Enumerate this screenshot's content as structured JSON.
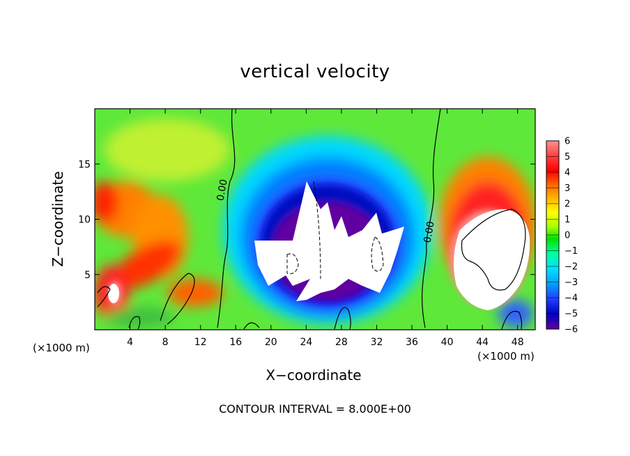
{
  "chart_data": {
    "type": "heatmap",
    "title": "vertical velocity",
    "xlabel": "X−coordinate",
    "ylabel": "Z−coordinate",
    "x_unit_label": "(×1000 m)",
    "xlim": [
      0,
      50
    ],
    "ylim": [
      0,
      20
    ],
    "x_ticks": [
      4,
      8,
      12,
      16,
      20,
      24,
      28,
      32,
      36,
      40,
      44,
      48
    ],
    "y_ticks": [
      5,
      10,
      15
    ],
    "colorbar": {
      "ticks": [
        "6",
        "5",
        "4",
        "3",
        "2",
        "1",
        "0",
        "−1",
        "−2",
        "−3",
        "−4",
        "−5",
        "−6"
      ],
      "range": [
        -6,
        6
      ],
      "colors": [
        "#ff9090",
        "#ff4040",
        "#ff0000",
        "#ff7000",
        "#ffb000",
        "#ffff00",
        "#a0ff00",
        "#00e000",
        "#00ffa0",
        "#00e0ff",
        "#00a0ff",
        "#2040ff",
        "#0000c0",
        "#6000a0"
      ]
    },
    "contour_labels": [
      {
        "text": "0.00",
        "x": 14.8,
        "y": 12.6
      },
      {
        "text": "0.00",
        "x": 38.3,
        "y": 8.8
      }
    ],
    "contour_interval_note": "CONTOUR INTERVAL = 8.000E+00"
  }
}
